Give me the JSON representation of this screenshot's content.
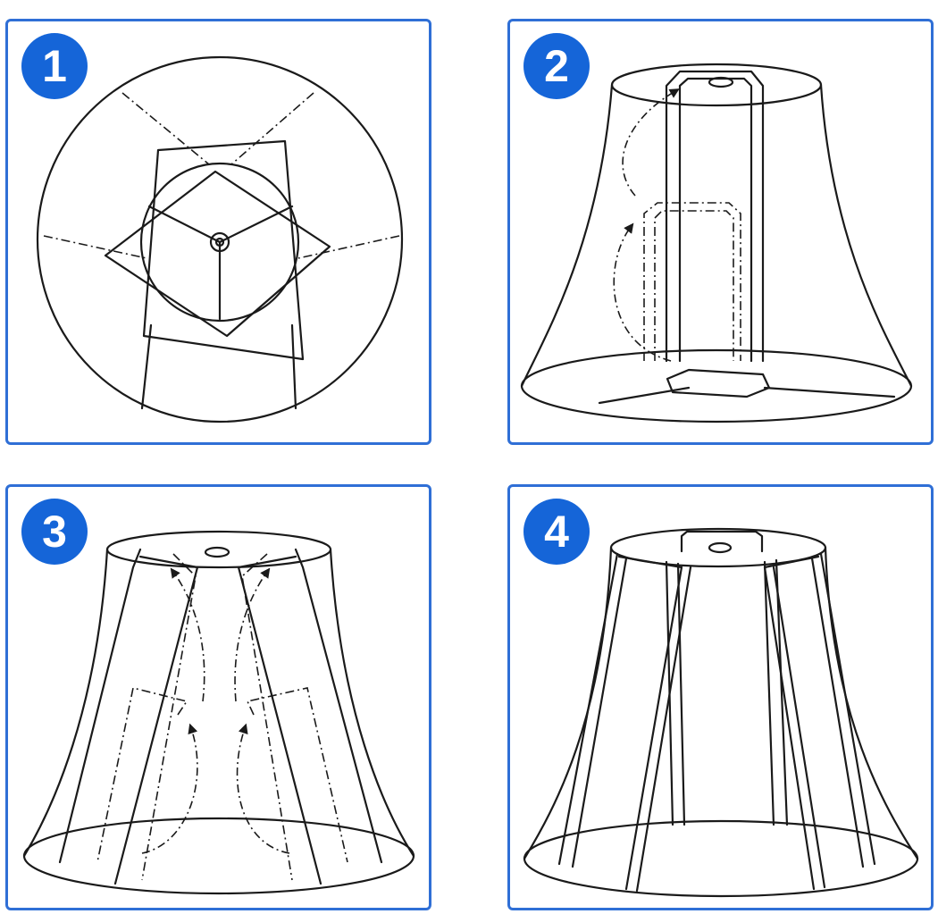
{
  "steps": [
    {
      "number": "1"
    },
    {
      "number": "2"
    },
    {
      "number": "3"
    },
    {
      "number": "4"
    }
  ],
  "colors": {
    "border": "#2f6fd6",
    "badge": "#1565d8",
    "line": "#1a1a1a"
  },
  "icons": [
    "arrow-icon"
  ]
}
